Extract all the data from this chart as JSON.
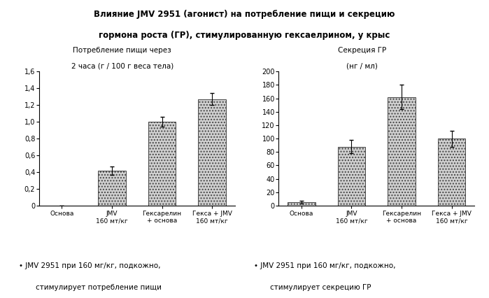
{
  "title_line1": "Влияние JMV 2951 (агонист) на потребление пищи и секрецию",
  "title_line2": "гормона роста (ГР), стимулированную гексаелрином, у крыс",
  "left_chart": {
    "subtitle_line1": "Потребление пищи через",
    "subtitle_line2": "2 часа (г / 100 г веса тела)",
    "categories": [
      "Основа",
      "JMV\n160 мт/кг",
      "Гексарелин\n+ основа",
      "Гекса + JMV\n160 мт/кг"
    ],
    "values": [
      0.0,
      0.42,
      1.0,
      1.27
    ],
    "errors": [
      0.0,
      0.05,
      0.06,
      0.07
    ],
    "ylim": [
      0,
      1.6
    ],
    "yticks": [
      0,
      0.2,
      0.4,
      0.6,
      0.8,
      1.0,
      1.2,
      1.4,
      1.6
    ]
  },
  "right_chart": {
    "subtitle_line1": "Секреция ГР",
    "subtitle_line2": "(нг / мл)",
    "categories": [
      "Основа",
      "JMV\n160 мт/кг",
      "Гексарелин\n+ основа",
      "Гекса + JMV\n160 мт/кг"
    ],
    "values": [
      5.0,
      88.0,
      162.0,
      100.0
    ],
    "errors": [
      2.0,
      10.0,
      18.0,
      12.0
    ],
    "ylim": [
      0,
      200
    ],
    "yticks": [
      0,
      20,
      40,
      60,
      80,
      100,
      120,
      140,
      160,
      180,
      200
    ]
  },
  "bar_color": "#d0d0d0",
  "bar_hatch": "....",
  "bar_edgecolor": "#444444",
  "note_left_line1": "JMV 2951 при 160 мг/кг, подкожно,",
  "note_left_line2": "стимулирует потребление пищи",
  "note_right_line1": "JMV 2951 при 160 мг/кг, подкожно,",
  "note_right_line2": "стимулирует секрецию ГР",
  "title_bg_color": "#bebebe"
}
